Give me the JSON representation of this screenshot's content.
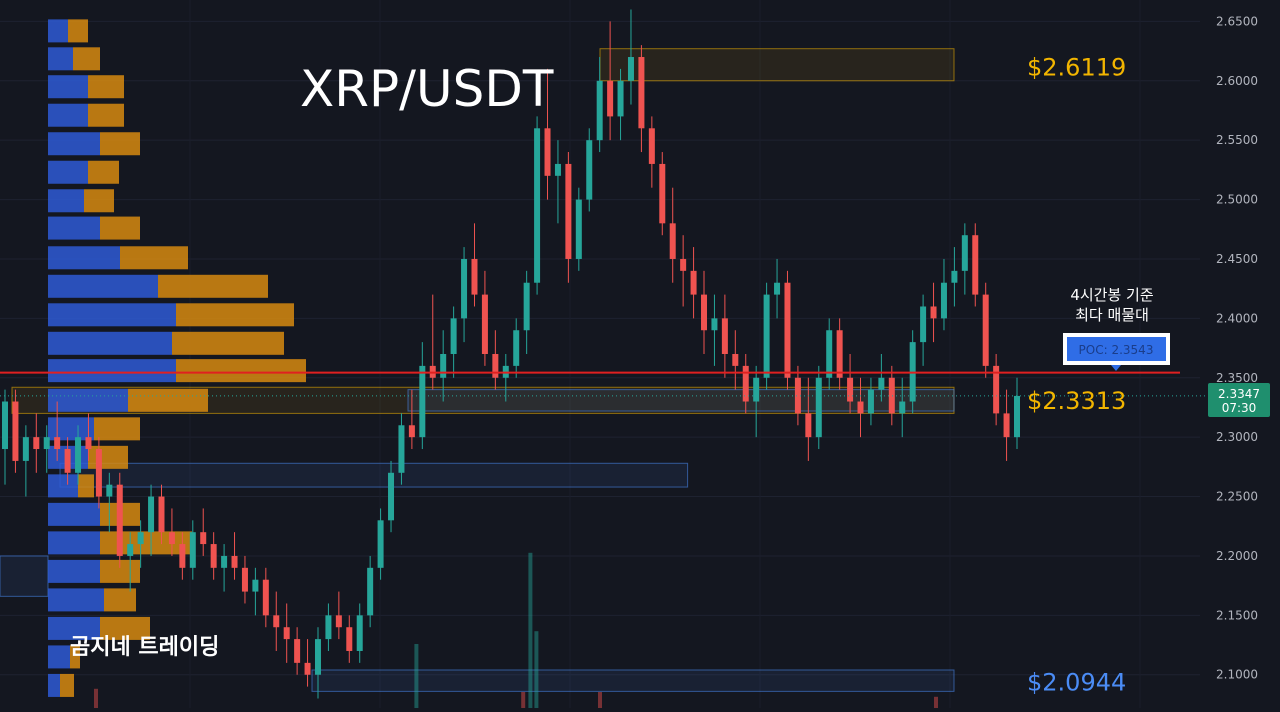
{
  "chart_data": {
    "type": "candlestick",
    "title": "XRP/USDT",
    "watermark": "곰지네 트레이딩",
    "colors": {
      "background": "#141720",
      "up": "#26a69a",
      "down": "#ef5350",
      "volume_buy": "#2e5bd6",
      "volume_sell": "#d68a10",
      "poc_line": "#e02020",
      "level_gold": "#f2b500",
      "level_blue": "#4b8cf5",
      "axis_text": "#b2b5be"
    },
    "ylim": [
      2.072,
      2.668
    ],
    "y_ticks": [
      "2.6500",
      "2.6000",
      "2.5500",
      "2.5000",
      "2.4500",
      "2.4000",
      "2.3500",
      "2.3000",
      "2.2500",
      "2.2000",
      "2.1500",
      "2.1000"
    ],
    "current_price": {
      "value": 2.3347,
      "label": "2.3347",
      "countdown": "07:30"
    },
    "levels": [
      {
        "name": "resistance",
        "value": 2.6119,
        "label": "$2.6119",
        "color": "gold"
      },
      {
        "name": "support",
        "value": 2.3313,
        "label": "$2.3313",
        "color": "gold"
      },
      {
        "name": "low",
        "value": 2.0944,
        "label": "$2.0944",
        "color": "blue"
      }
    ],
    "poc": {
      "value": 2.3543,
      "label": "POC: 2.3543",
      "annotation_line1": "4시간봉 기준",
      "annotation_line2": "최다 매물대"
    },
    "zones": [
      {
        "name": "top-zone",
        "low": 2.6,
        "high": 2.627,
        "start": 0.5,
        "end": 0.795,
        "color": "gold"
      },
      {
        "name": "poc-zone",
        "low": 2.32,
        "high": 2.342,
        "start": 0.01,
        "end": 0.795,
        "color": "gold"
      },
      {
        "name": "poc-zone-inner",
        "low": 2.322,
        "high": 2.34,
        "start": 0.34,
        "end": 0.795,
        "color": "blue"
      },
      {
        "name": "mid-zone",
        "low": 2.258,
        "high": 2.278,
        "start": 0.05,
        "end": 0.573,
        "color": "blue"
      },
      {
        "name": "bottom-zone",
        "low": 2.086,
        "high": 2.104,
        "start": 0.26,
        "end": 0.795,
        "color": "blue"
      },
      {
        "name": "left-zone",
        "low": 2.166,
        "high": 2.2,
        "start": 0.0,
        "end": 0.04,
        "color": "blue"
      }
    ],
    "volume_profile": [
      {
        "price": 2.642,
        "buy": 20,
        "sell": 20
      },
      {
        "price": 2.6185,
        "buy": 25,
        "sell": 27
      },
      {
        "price": 2.595,
        "buy": 40,
        "sell": 36
      },
      {
        "price": 2.571,
        "buy": 40,
        "sell": 36
      },
      {
        "price": 2.547,
        "buy": 52,
        "sell": 40
      },
      {
        "price": 2.523,
        "buy": 40,
        "sell": 31
      },
      {
        "price": 2.499,
        "buy": 36,
        "sell": 30
      },
      {
        "price": 2.476,
        "buy": 52,
        "sell": 40
      },
      {
        "price": 2.451,
        "buy": 72,
        "sell": 68
      },
      {
        "price": 2.427,
        "buy": 110,
        "sell": 110
      },
      {
        "price": 2.403,
        "buy": 128,
        "sell": 118
      },
      {
        "price": 2.379,
        "buy": 124,
        "sell": 112
      },
      {
        "price": 2.356,
        "buy": 128,
        "sell": 130
      },
      {
        "price": 2.331,
        "buy": 80,
        "sell": 80
      },
      {
        "price": 2.307,
        "buy": 46,
        "sell": 46
      },
      {
        "price": 2.283,
        "buy": 40,
        "sell": 40
      },
      {
        "price": 2.259,
        "buy": 30,
        "sell": 16
      },
      {
        "price": 2.235,
        "buy": 52,
        "sell": 40
      },
      {
        "price": 2.211,
        "buy": 52,
        "sell": 92
      },
      {
        "price": 2.187,
        "buy": 52,
        "sell": 40
      },
      {
        "price": 2.163,
        "buy": 56,
        "sell": 32
      },
      {
        "price": 2.139,
        "buy": 52,
        "sell": 50
      },
      {
        "price": 2.115,
        "buy": 22,
        "sell": 10
      },
      {
        "price": 2.091,
        "buy": 12,
        "sell": 14
      }
    ],
    "candles": [
      [
        2.29,
        2.34,
        2.26,
        2.33
      ],
      [
        2.33,
        2.34,
        2.27,
        2.28
      ],
      [
        2.28,
        2.31,
        2.25,
        2.3
      ],
      [
        2.3,
        2.32,
        2.27,
        2.29
      ],
      [
        2.29,
        2.31,
        2.27,
        2.3
      ],
      [
        2.3,
        2.33,
        2.28,
        2.29
      ],
      [
        2.29,
        2.3,
        2.26,
        2.27
      ],
      [
        2.27,
        2.31,
        2.26,
        2.3
      ],
      [
        2.3,
        2.32,
        2.28,
        2.29
      ],
      [
        2.29,
        2.3,
        2.24,
        2.25
      ],
      [
        2.25,
        2.27,
        2.22,
        2.26
      ],
      [
        2.26,
        2.27,
        2.19,
        2.2
      ],
      [
        2.2,
        2.22,
        2.17,
        2.21
      ],
      [
        2.21,
        2.23,
        2.19,
        2.22
      ],
      [
        2.22,
        2.26,
        2.2,
        2.25
      ],
      [
        2.25,
        2.26,
        2.21,
        2.22
      ],
      [
        2.22,
        2.24,
        2.2,
        2.21
      ],
      [
        2.21,
        2.22,
        2.18,
        2.19
      ],
      [
        2.19,
        2.23,
        2.18,
        2.22
      ],
      [
        2.22,
        2.24,
        2.2,
        2.21
      ],
      [
        2.21,
        2.22,
        2.18,
        2.19
      ],
      [
        2.19,
        2.21,
        2.17,
        2.2
      ],
      [
        2.2,
        2.22,
        2.18,
        2.19
      ],
      [
        2.19,
        2.2,
        2.16,
        2.17
      ],
      [
        2.17,
        2.19,
        2.15,
        2.18
      ],
      [
        2.18,
        2.19,
        2.14,
        2.15
      ],
      [
        2.15,
        2.17,
        2.12,
        2.14
      ],
      [
        2.14,
        2.16,
        2.11,
        2.13
      ],
      [
        2.13,
        2.14,
        2.1,
        2.11
      ],
      [
        2.11,
        2.13,
        2.09,
        2.1
      ],
      [
        2.1,
        2.14,
        2.08,
        2.13
      ],
      [
        2.13,
        2.16,
        2.12,
        2.15
      ],
      [
        2.15,
        2.17,
        2.13,
        2.14
      ],
      [
        2.14,
        2.15,
        2.11,
        2.12
      ],
      [
        2.12,
        2.16,
        2.11,
        2.15
      ],
      [
        2.15,
        2.2,
        2.14,
        2.19
      ],
      [
        2.19,
        2.24,
        2.18,
        2.23
      ],
      [
        2.23,
        2.28,
        2.22,
        2.27
      ],
      [
        2.27,
        2.32,
        2.26,
        2.31
      ],
      [
        2.31,
        2.34,
        2.29,
        2.3
      ],
      [
        2.3,
        2.38,
        2.29,
        2.36
      ],
      [
        2.36,
        2.42,
        2.34,
        2.35
      ],
      [
        2.35,
        2.39,
        2.33,
        2.37
      ],
      [
        2.37,
        2.41,
        2.35,
        2.4
      ],
      [
        2.4,
        2.46,
        2.38,
        2.45
      ],
      [
        2.45,
        2.48,
        2.41,
        2.42
      ],
      [
        2.42,
        2.44,
        2.36,
        2.37
      ],
      [
        2.37,
        2.39,
        2.34,
        2.35
      ],
      [
        2.35,
        2.37,
        2.33,
        2.36
      ],
      [
        2.36,
        2.4,
        2.35,
        2.39
      ],
      [
        2.39,
        2.44,
        2.37,
        2.43
      ],
      [
        2.43,
        2.57,
        2.42,
        2.56
      ],
      [
        2.56,
        2.61,
        2.5,
        2.52
      ],
      [
        2.52,
        2.55,
        2.48,
        2.53
      ],
      [
        2.53,
        2.54,
        2.43,
        2.45
      ],
      [
        2.45,
        2.51,
        2.44,
        2.5
      ],
      [
        2.5,
        2.56,
        2.49,
        2.55
      ],
      [
        2.55,
        2.62,
        2.54,
        2.6
      ],
      [
        2.6,
        2.65,
        2.55,
        2.57
      ],
      [
        2.57,
        2.61,
        2.55,
        2.6
      ],
      [
        2.6,
        2.66,
        2.58,
        2.62
      ],
      [
        2.62,
        2.63,
        2.54,
        2.56
      ],
      [
        2.56,
        2.57,
        2.51,
        2.53
      ],
      [
        2.53,
        2.54,
        2.47,
        2.48
      ],
      [
        2.48,
        2.51,
        2.43,
        2.45
      ],
      [
        2.45,
        2.47,
        2.41,
        2.44
      ],
      [
        2.44,
        2.46,
        2.4,
        2.42
      ],
      [
        2.42,
        2.44,
        2.37,
        2.39
      ],
      [
        2.39,
        2.42,
        2.36,
        2.4
      ],
      [
        2.4,
        2.42,
        2.35,
        2.37
      ],
      [
        2.37,
        2.39,
        2.34,
        2.36
      ],
      [
        2.36,
        2.37,
        2.32,
        2.33
      ],
      [
        2.33,
        2.36,
        2.3,
        2.35
      ],
      [
        2.35,
        2.43,
        2.34,
        2.42
      ],
      [
        2.42,
        2.45,
        2.4,
        2.43
      ],
      [
        2.43,
        2.44,
        2.34,
        2.35
      ],
      [
        2.35,
        2.36,
        2.31,
        2.32
      ],
      [
        2.32,
        2.35,
        2.28,
        2.3
      ],
      [
        2.3,
        2.36,
        2.29,
        2.35
      ],
      [
        2.35,
        2.4,
        2.34,
        2.39
      ],
      [
        2.39,
        2.4,
        2.34,
        2.35
      ],
      [
        2.35,
        2.37,
        2.32,
        2.33
      ],
      [
        2.33,
        2.35,
        2.3,
        2.32
      ],
      [
        2.32,
        2.35,
        2.31,
        2.34
      ],
      [
        2.34,
        2.37,
        2.33,
        2.35
      ],
      [
        2.35,
        2.36,
        2.31,
        2.32
      ],
      [
        2.32,
        2.35,
        2.3,
        2.33
      ],
      [
        2.33,
        2.39,
        2.32,
        2.38
      ],
      [
        2.38,
        2.42,
        2.36,
        2.41
      ],
      [
        2.41,
        2.43,
        2.38,
        2.4
      ],
      [
        2.4,
        2.45,
        2.39,
        2.43
      ],
      [
        2.43,
        2.46,
        2.41,
        2.44
      ],
      [
        2.44,
        2.48,
        2.42,
        2.47
      ],
      [
        2.47,
        2.48,
        2.41,
        2.42
      ],
      [
        2.42,
        2.43,
        2.35,
        2.36
      ],
      [
        2.36,
        2.37,
        2.31,
        2.32
      ],
      [
        2.32,
        2.34,
        2.28,
        2.3
      ],
      [
        2.3,
        2.35,
        2.29,
        2.3347
      ]
    ],
    "volume_bars": [
      {
        "x": 0.347,
        "value": 0.4,
        "color": "up"
      },
      {
        "x": 0.442,
        "value": 0.97,
        "color": "up"
      },
      {
        "x": 0.447,
        "value": 0.48,
        "color": "up"
      },
      {
        "x": 0.436,
        "value": 0.1,
        "color": "down"
      },
      {
        "x": 0.08,
        "value": 0.12,
        "color": "down"
      },
      {
        "x": 0.5,
        "value": 0.1,
        "color": "down"
      },
      {
        "x": 0.78,
        "value": 0.07,
        "color": "down"
      }
    ]
  }
}
